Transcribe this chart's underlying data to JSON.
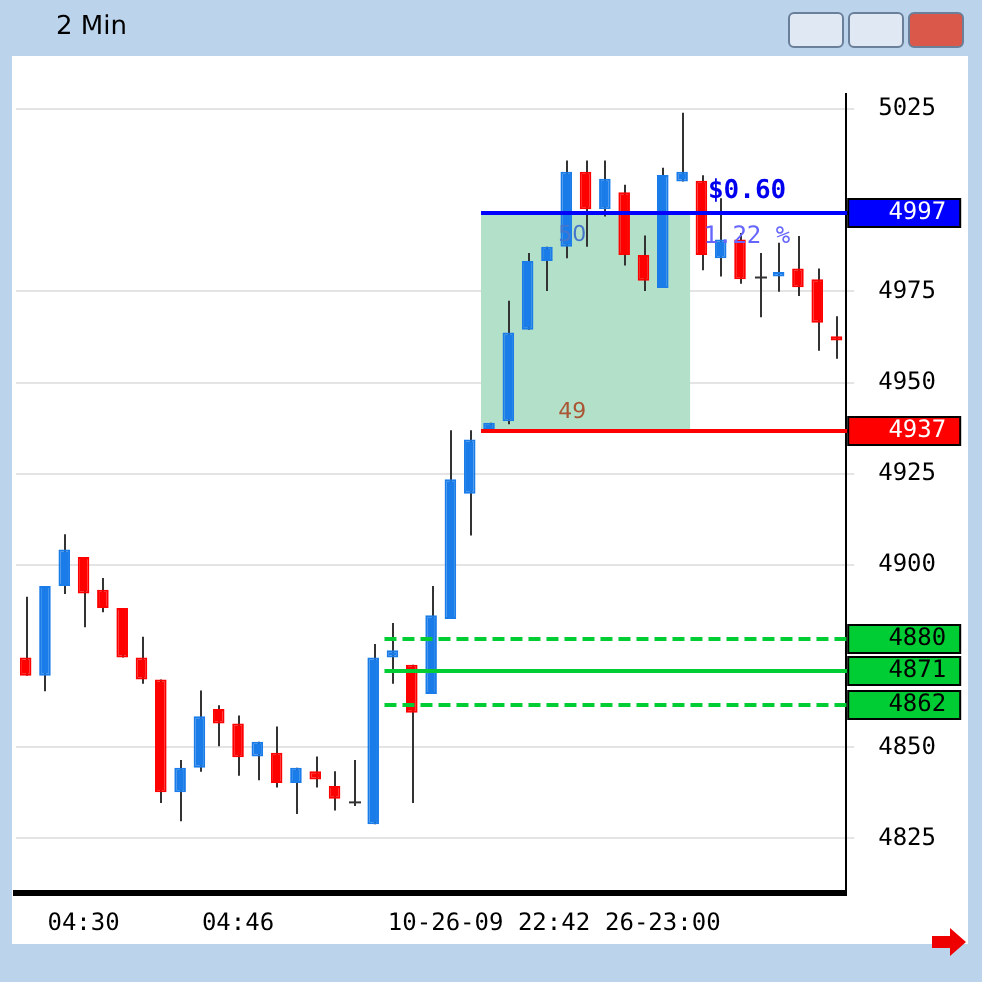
{
  "chart_data": {
    "type": "candlestick",
    "title": "2 Min",
    "categories": [
      null,
      null,
      null,
      "04:30",
      null,
      null,
      null,
      null,
      null,
      null,
      null,
      "04:46",
      null,
      null,
      null,
      null,
      null,
      null,
      null,
      null,
      null,
      null,
      null,
      null,
      "10-26-09 22:42",
      null,
      null,
      null,
      null,
      null,
      null,
      null,
      null,
      "26-23:00",
      null,
      null,
      null,
      null,
      null,
      null,
      null,
      null,
      null
    ],
    "ohlc": [
      [
        4874.6,
        4891.3,
        4869.6,
        4869.6
      ],
      [
        4869.6,
        4894.2,
        4865.4,
        4894.2
      ],
      [
        4894.2,
        4908.4,
        4892,
        4904.2
      ],
      [
        4902.2,
        4902.2,
        4882.9,
        4892.2
      ],
      [
        4893.2,
        4896.4,
        4887,
        4888.2
      ],
      [
        4888.2,
        4888.2,
        4874.6,
        4874.6
      ],
      [
        4874.6,
        4880.3,
        4867.4,
        4868.6
      ],
      [
        4868.6,
        4868.6,
        4834.7,
        4837.7
      ],
      [
        4837.7,
        4846.5,
        4829.7,
        4844.4
      ],
      [
        4844.4,
        4865.6,
        4843.3,
        4858.5
      ],
      [
        4860.5,
        4861.5,
        4850.3,
        4856.5
      ],
      [
        4856.5,
        4858.7,
        4842.2,
        4847.3
      ],
      [
        4847.5,
        4851.5,
        4841,
        4851.5
      ],
      [
        4848.5,
        4855.7,
        4839,
        4840.2
      ],
      [
        4840.2,
        4844.4,
        4831.7,
        4844.4
      ],
      [
        4843.4,
        4847.5,
        4839,
        4841.2
      ],
      [
        4839.4,
        4843.4,
        4832.7,
        4835.9
      ],
      [
        4834.9,
        4846.5,
        4833.9,
        4834.9
      ],
      [
        4828.9,
        4878.3,
        4828.9,
        4874.6
      ],
      [
        4874.6,
        4884.1,
        4867.4,
        4876.6
      ],
      [
        4872.6,
        4872.6,
        4834.7,
        4859.5
      ],
      [
        4864.6,
        4894.2,
        4864.6,
        4886.2
      ],
      [
        4885.2,
        4936.9,
        4885.2,
        4923.5
      ],
      [
        4919.5,
        4936.9,
        4908.1,
        4934.4
      ],
      [
        4937,
        4939,
        4937,
        4939
      ],
      [
        4939.4,
        4972.4,
        4938.6,
        4963.7
      ],
      [
        4964.5,
        4985.5,
        4964.5,
        4983.3
      ],
      [
        4983.3,
        4987.2,
        4975.1,
        4987.2
      ],
      [
        4987.2,
        5010.9,
        4984.1,
        5007.8
      ],
      [
        5007.8,
        5010.9,
        4987.2,
        4997.5
      ],
      [
        4997.5,
        5010.9,
        4995.5,
        5005.9
      ],
      [
        5002.2,
        5004.2,
        4982.1,
        4985
      ],
      [
        4985,
        4990.3,
        4975.1,
        4977.9
      ],
      [
        4975.9,
        5008.9,
        4975.9,
        5006.9
      ],
      [
        5005.1,
        5024,
        5005.1,
        5007.8
      ],
      [
        5005.3,
        5006.8,
        4980.8,
        4985
      ],
      [
        4984.1,
        5000.5,
        4979.1,
        4989.2
      ],
      [
        4989.2,
        4991,
        4977.1,
        4978.3
      ],
      [
        4978.8,
        4985.5,
        4967.9,
        4978.8
      ],
      [
        4979.1,
        4988.3,
        4974.9,
        4980.3
      ],
      [
        4981.3,
        4990.2,
        4973.7,
        4976.1
      ],
      [
        4978.3,
        4981.3,
        4958.7,
        4966.4
      ],
      [
        4962.7,
        4968.2,
        4956.5,
        4961.5
      ]
    ],
    "colors": [
      "#ff0000",
      "#1a7ce8",
      "#1a7ce8",
      "#ff0000",
      "#ff0000",
      "#ff0000",
      "#ff0000",
      "#ff0000",
      "#1a7ce8",
      "#1a7ce8",
      "#ff0000",
      "#ff0000",
      "#1a7ce8",
      "#ff0000",
      "#1a7ce8",
      "#ff0000",
      "#ff0000",
      "#333333",
      "#1a7ce8",
      "#1a7ce8",
      "#ff0000",
      "#1a7ce8",
      "#1a7ce8",
      "#1a7ce8",
      "#1a7ce8",
      "#1a7ce8",
      "#1a7ce8",
      "#1a7ce8",
      "#1a7ce8",
      "#ff0000",
      "#1a7ce8",
      "#ff0000",
      "#ff0000",
      "#1a7ce8",
      "#1a7ce8",
      "#ff0000",
      "#1a7ce8",
      "#ff0000",
      "#333333",
      "#1a7ce8",
      "#ff0000",
      "#ff0000",
      "#ff0000"
    ],
    "ylim": [
      4810,
      5029
    ],
    "yticks": [
      4825,
      4850,
      4900,
      4925,
      4950,
      4975,
      5025
    ],
    "grid": "y",
    "ref_lines": [
      {
        "axis": "y",
        "value": 4997,
        "label": "4997",
        "color": "#0000ff",
        "line_style": "solid"
      },
      {
        "axis": "y",
        "value": 4937,
        "label": "4937",
        "color": "#ff0000",
        "line_style": "solid"
      },
      {
        "axis": "y",
        "value": 4880,
        "label": "4880",
        "color": "#00cc33",
        "line_style": "dashed"
      },
      {
        "axis": "y",
        "value": 4871,
        "label": "4871",
        "color": "#00cc33",
        "line_style": "solid"
      },
      {
        "axis": "y",
        "value": 4862,
        "label": "4862",
        "color": "#00cc33",
        "line_style": "dashed"
      }
    ],
    "bands": [
      {
        "axis": "y",
        "from": 4937,
        "to": 4997,
        "color": "#b3e0c8"
      }
    ],
    "annotations": [
      "$0.60",
      "1.22 %",
      "50",
      "49"
    ],
    "legend": false
  }
}
